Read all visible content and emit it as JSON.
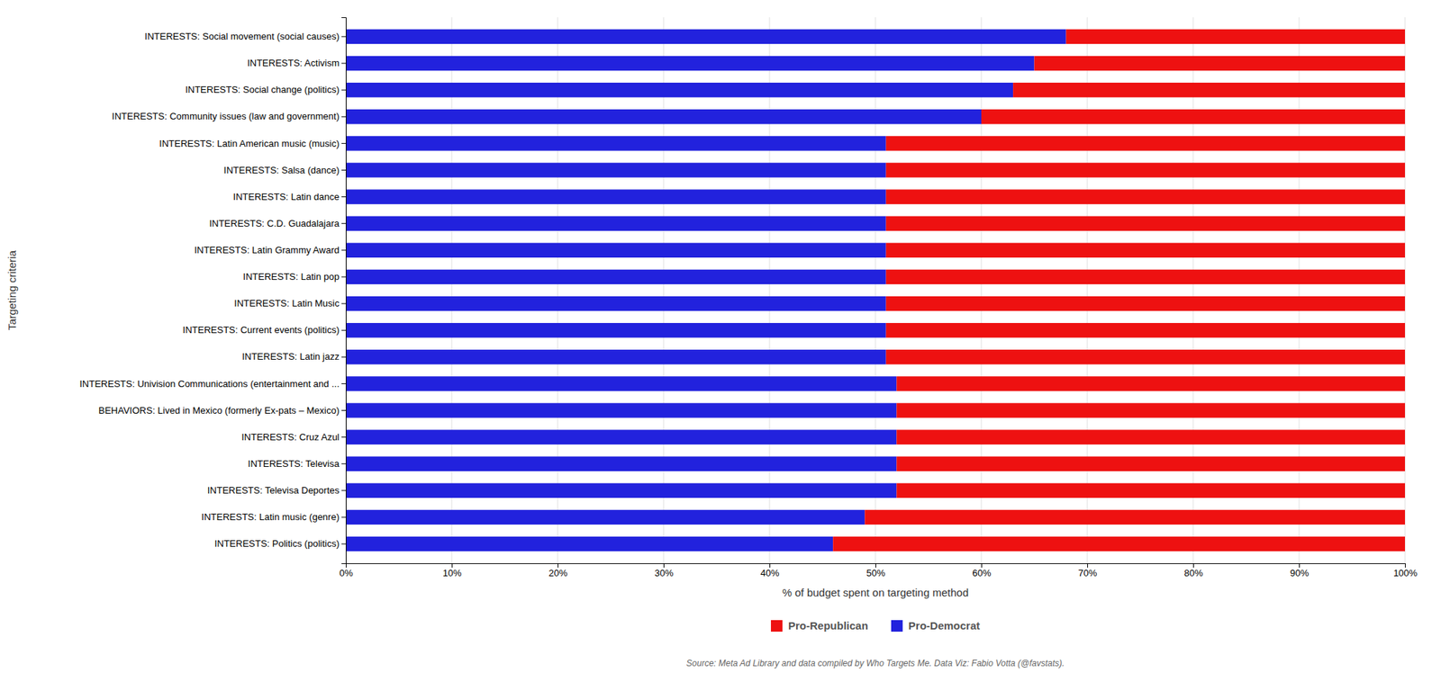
{
  "chart_data": {
    "type": "bar",
    "orientation": "horizontal",
    "stacked": true,
    "categories": [
      "INTERESTS: Social movement (social causes)",
      "INTERESTS: Activism",
      "INTERESTS: Social change (politics)",
      "INTERESTS: Community issues (law and government)",
      "INTERESTS: Latin American music (music)",
      "INTERESTS: Salsa (dance)",
      "INTERESTS: Latin dance",
      "INTERESTS: C.D. Guadalajara",
      "INTERESTS: Latin Grammy Award",
      "INTERESTS: Latin pop",
      "INTERESTS: Latin Music",
      "INTERESTS: Current events (politics)",
      "INTERESTS: Latin jazz",
      "INTERESTS: Univision Communications (entertainment and ...",
      "BEHAVIORS: Lived in Mexico (formerly Ex-pats – Mexico)",
      "INTERESTS: Cruz Azul",
      "INTERESTS: Televisa",
      "INTERESTS: Televisa Deportes",
      "INTERESTS: Latin music (genre)",
      "INTERESTS: Politics (politics)"
    ],
    "series": [
      {
        "name": "Pro-Democrat",
        "color": "#2222dd",
        "values": [
          68,
          65,
          63,
          60,
          51,
          51,
          51,
          51,
          51,
          51,
          51,
          51,
          51,
          52,
          52,
          52,
          52,
          52,
          49,
          46
        ]
      },
      {
        "name": "Pro-Republican",
        "color": "#ee1111",
        "values": [
          32,
          35,
          37,
          40,
          49,
          49,
          49,
          49,
          49,
          49,
          49,
          49,
          49,
          48,
          48,
          48,
          48,
          48,
          51,
          54
        ]
      }
    ],
    "xlabel": "% of budget spent on targeting method",
    "ylabel": "Targeting criteria",
    "xlim": [
      0,
      100
    ],
    "xticks": [
      {
        "value": 0,
        "label": "0%"
      },
      {
        "value": 10,
        "label": "10%"
      },
      {
        "value": 20,
        "label": "20%"
      },
      {
        "value": 30,
        "label": "30%"
      },
      {
        "value": 40,
        "label": "40%"
      },
      {
        "value": 50,
        "label": "50%"
      },
      {
        "value": 60,
        "label": "60%"
      },
      {
        "value": 70,
        "label": "70%"
      },
      {
        "value": 80,
        "label": "80%"
      },
      {
        "value": 90,
        "label": "90%"
      },
      {
        "value": 100,
        "label": "100%"
      }
    ],
    "grid": true,
    "legend": "bottom",
    "annotations": [
      "Source: Meta Ad Library and data compiled by Who Targets Me. Data Viz: Fabio Votta (@favstats)."
    ]
  }
}
